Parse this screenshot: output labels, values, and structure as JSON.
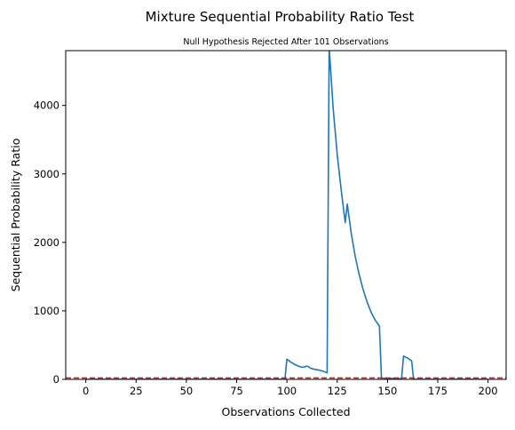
{
  "chart_data": {
    "type": "line",
    "title": "Mixture Sequential Probability Ratio Test",
    "subtitle": "Null Hypothesis Rejected After 101 Observations",
    "xlabel": "Observations Collected",
    "ylabel": "Sequential Probability Ratio",
    "xlim": [
      -10,
      209
    ],
    "ylim": [
      0,
      4800
    ],
    "xticks": [
      0,
      25,
      50,
      75,
      100,
      125,
      150,
      175,
      200
    ],
    "yticks": [
      0,
      1000,
      2000,
      3000,
      4000
    ],
    "grid": false,
    "threshold": {
      "value": 20,
      "color": "#d62728",
      "style": "dashed"
    },
    "series_color": "#1f77b4",
    "series": [
      {
        "x": [
          0,
          10,
          20,
          30,
          40,
          50,
          60,
          70,
          80,
          90,
          99,
          100,
          102,
          104,
          106,
          108,
          110,
          112,
          114,
          116,
          118,
          120,
          121,
          123,
          125,
          127,
          129,
          130,
          132,
          134,
          136,
          138,
          140,
          142,
          144,
          146,
          147,
          150,
          155,
          157,
          158,
          160,
          162,
          163,
          165,
          170,
          180,
          190,
          200
        ],
        "y": [
          1,
          1,
          1,
          1,
          1,
          1,
          1,
          1,
          1,
          1,
          2,
          295,
          250,
          215,
          190,
          175,
          195,
          160,
          145,
          135,
          120,
          95,
          4850,
          3960,
          3280,
          2760,
          2290,
          2560,
          2130,
          1790,
          1520,
          1300,
          1120,
          970,
          860,
          780,
          20,
          15,
          12,
          10,
          340,
          310,
          270,
          2,
          1,
          1,
          1,
          1,
          1
        ]
      }
    ]
  }
}
